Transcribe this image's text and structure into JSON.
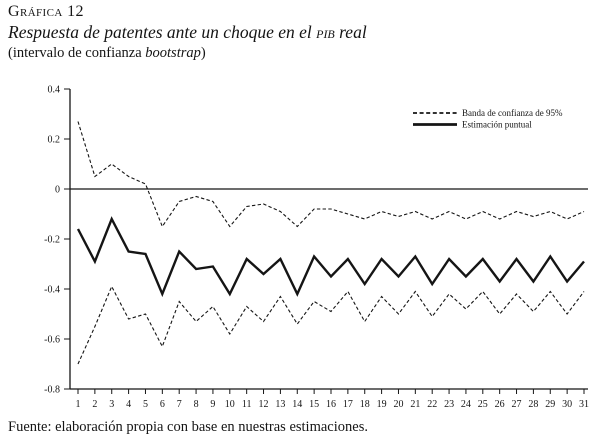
{
  "header": {
    "figure_label": "Gráfica 12",
    "title_pre": "Respuesta de patentes ante un choque en el ",
    "title_smallcaps": "pib",
    "title_post": " real",
    "subtitle_pre": "(intervalo de confianza ",
    "subtitle_italic": "bootstrap",
    "subtitle_post": ")"
  },
  "chart_data": {
    "type": "line",
    "title": "Respuesta de patentes ante un choque en el PIB real",
    "xlabel": "",
    "ylabel": "",
    "ylim": [
      -0.8,
      0.4
    ],
    "grid": false,
    "legend_position": "top-right",
    "colors": {
      "line": "#151515",
      "background": "#ffffff"
    },
    "x": [
      1,
      2,
      3,
      4,
      5,
      6,
      7,
      8,
      9,
      10,
      11,
      12,
      13,
      14,
      15,
      16,
      17,
      18,
      19,
      20,
      21,
      22,
      23,
      24,
      25,
      26,
      27,
      28,
      29,
      30,
      31
    ],
    "yticks": [
      "0.4",
      "0.2",
      "0",
      "-0.2",
      "-0.4",
      "-0.6",
      "-0.8"
    ],
    "ytick_values": [
      0.4,
      0.2,
      0,
      -0.2,
      -0.4,
      -0.6,
      -0.8
    ],
    "series": [
      {
        "id": "upper_band",
        "name": "Banda de confianza de 95% (superior)",
        "style": "dashed",
        "values": [
          0.27,
          0.05,
          0.1,
          0.05,
          0.02,
          -0.15,
          -0.05,
          -0.03,
          -0.05,
          -0.15,
          -0.07,
          -0.06,
          -0.09,
          -0.15,
          -0.08,
          -0.08,
          -0.1,
          -0.12,
          -0.09,
          -0.11,
          -0.09,
          -0.12,
          -0.09,
          -0.12,
          -0.09,
          -0.12,
          -0.09,
          -0.11,
          -0.09,
          -0.12,
          -0.09
        ]
      },
      {
        "id": "point_estimate",
        "name": "Estimación puntual",
        "style": "solid",
        "values": [
          -0.16,
          -0.29,
          -0.12,
          -0.25,
          -0.26,
          -0.42,
          -0.25,
          -0.32,
          -0.31,
          -0.42,
          -0.28,
          -0.34,
          -0.28,
          -0.42,
          -0.27,
          -0.35,
          -0.28,
          -0.38,
          -0.28,
          -0.35,
          -0.27,
          -0.38,
          -0.28,
          -0.35,
          -0.28,
          -0.37,
          -0.28,
          -0.37,
          -0.27,
          -0.37,
          -0.29
        ]
      },
      {
        "id": "lower_band",
        "name": "Banda de confianza de 95% (inferior)",
        "style": "dashed",
        "values": [
          -0.7,
          -0.55,
          -0.39,
          -0.52,
          -0.5,
          -0.63,
          -0.45,
          -0.53,
          -0.47,
          -0.58,
          -0.47,
          -0.53,
          -0.43,
          -0.54,
          -0.45,
          -0.49,
          -0.41,
          -0.53,
          -0.43,
          -0.5,
          -0.41,
          -0.51,
          -0.42,
          -0.48,
          -0.41,
          -0.5,
          -0.42,
          -0.49,
          -0.41,
          -0.5,
          -0.41
        ]
      }
    ],
    "legend": [
      {
        "label": "Banda de confianza de 95%",
        "style": "dashed"
      },
      {
        "label": "Estimación puntual",
        "style": "solid"
      }
    ]
  },
  "footer": {
    "source": "Fuente: elaboración propia con base en nuestras estimaciones."
  }
}
